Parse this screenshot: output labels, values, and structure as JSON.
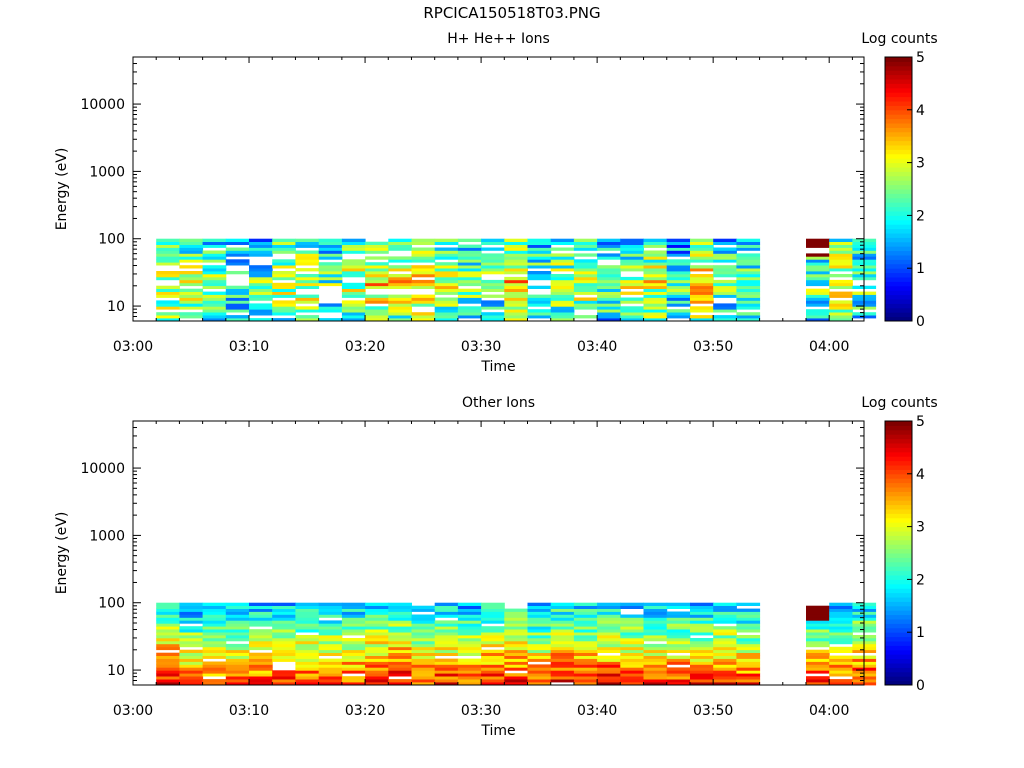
{
  "title": "RPCICA150518T03.PNG",
  "colors": {
    "colormap": [
      "#00007f",
      "#0000ff",
      "#007fff",
      "#00ffff",
      "#7fff7f",
      "#ffff00",
      "#ff7f00",
      "#ff0000",
      "#7f0000"
    ]
  },
  "chart_data": [
    {
      "type": "heatmap",
      "title": "H+ He++ Ions",
      "xlabel": "Time",
      "ylabel": "Energy (eV)",
      "y_scale": "log",
      "ylim": [
        6,
        50000
      ],
      "xlim": [
        "03:00",
        "04:03"
      ],
      "x_ticks": [
        "03:00",
        "03:10",
        "03:20",
        "03:30",
        "03:40",
        "03:50",
        "04:00"
      ],
      "y_ticks": [
        "10",
        "100",
        "1000",
        "10000"
      ],
      "energy_range": [
        6,
        100
      ],
      "data_gap": [
        "03:54",
        "03:57"
      ],
      "colorbar": {
        "label": "Log counts",
        "range": [
          0,
          5
        ],
        "ticks": [
          "0",
          "1",
          "2",
          "3",
          "4",
          "5"
        ]
      }
    },
    {
      "type": "heatmap",
      "title": "Other Ions",
      "xlabel": "Time",
      "ylabel": "Energy (eV)",
      "y_scale": "log",
      "ylim": [
        6,
        50000
      ],
      "xlim": [
        "03:00",
        "04:03"
      ],
      "x_ticks": [
        "03:00",
        "03:10",
        "03:20",
        "03:30",
        "03:40",
        "03:50",
        "04:00"
      ],
      "y_ticks": [
        "10",
        "100",
        "1000",
        "10000"
      ],
      "energy_range": [
        6,
        100
      ],
      "data_gap": [
        "03:54",
        "03:57"
      ],
      "colorbar": {
        "label": "Log counts",
        "range": [
          0,
          5
        ],
        "ticks": [
          "0",
          "1",
          "2",
          "3",
          "4",
          "5"
        ]
      }
    }
  ]
}
